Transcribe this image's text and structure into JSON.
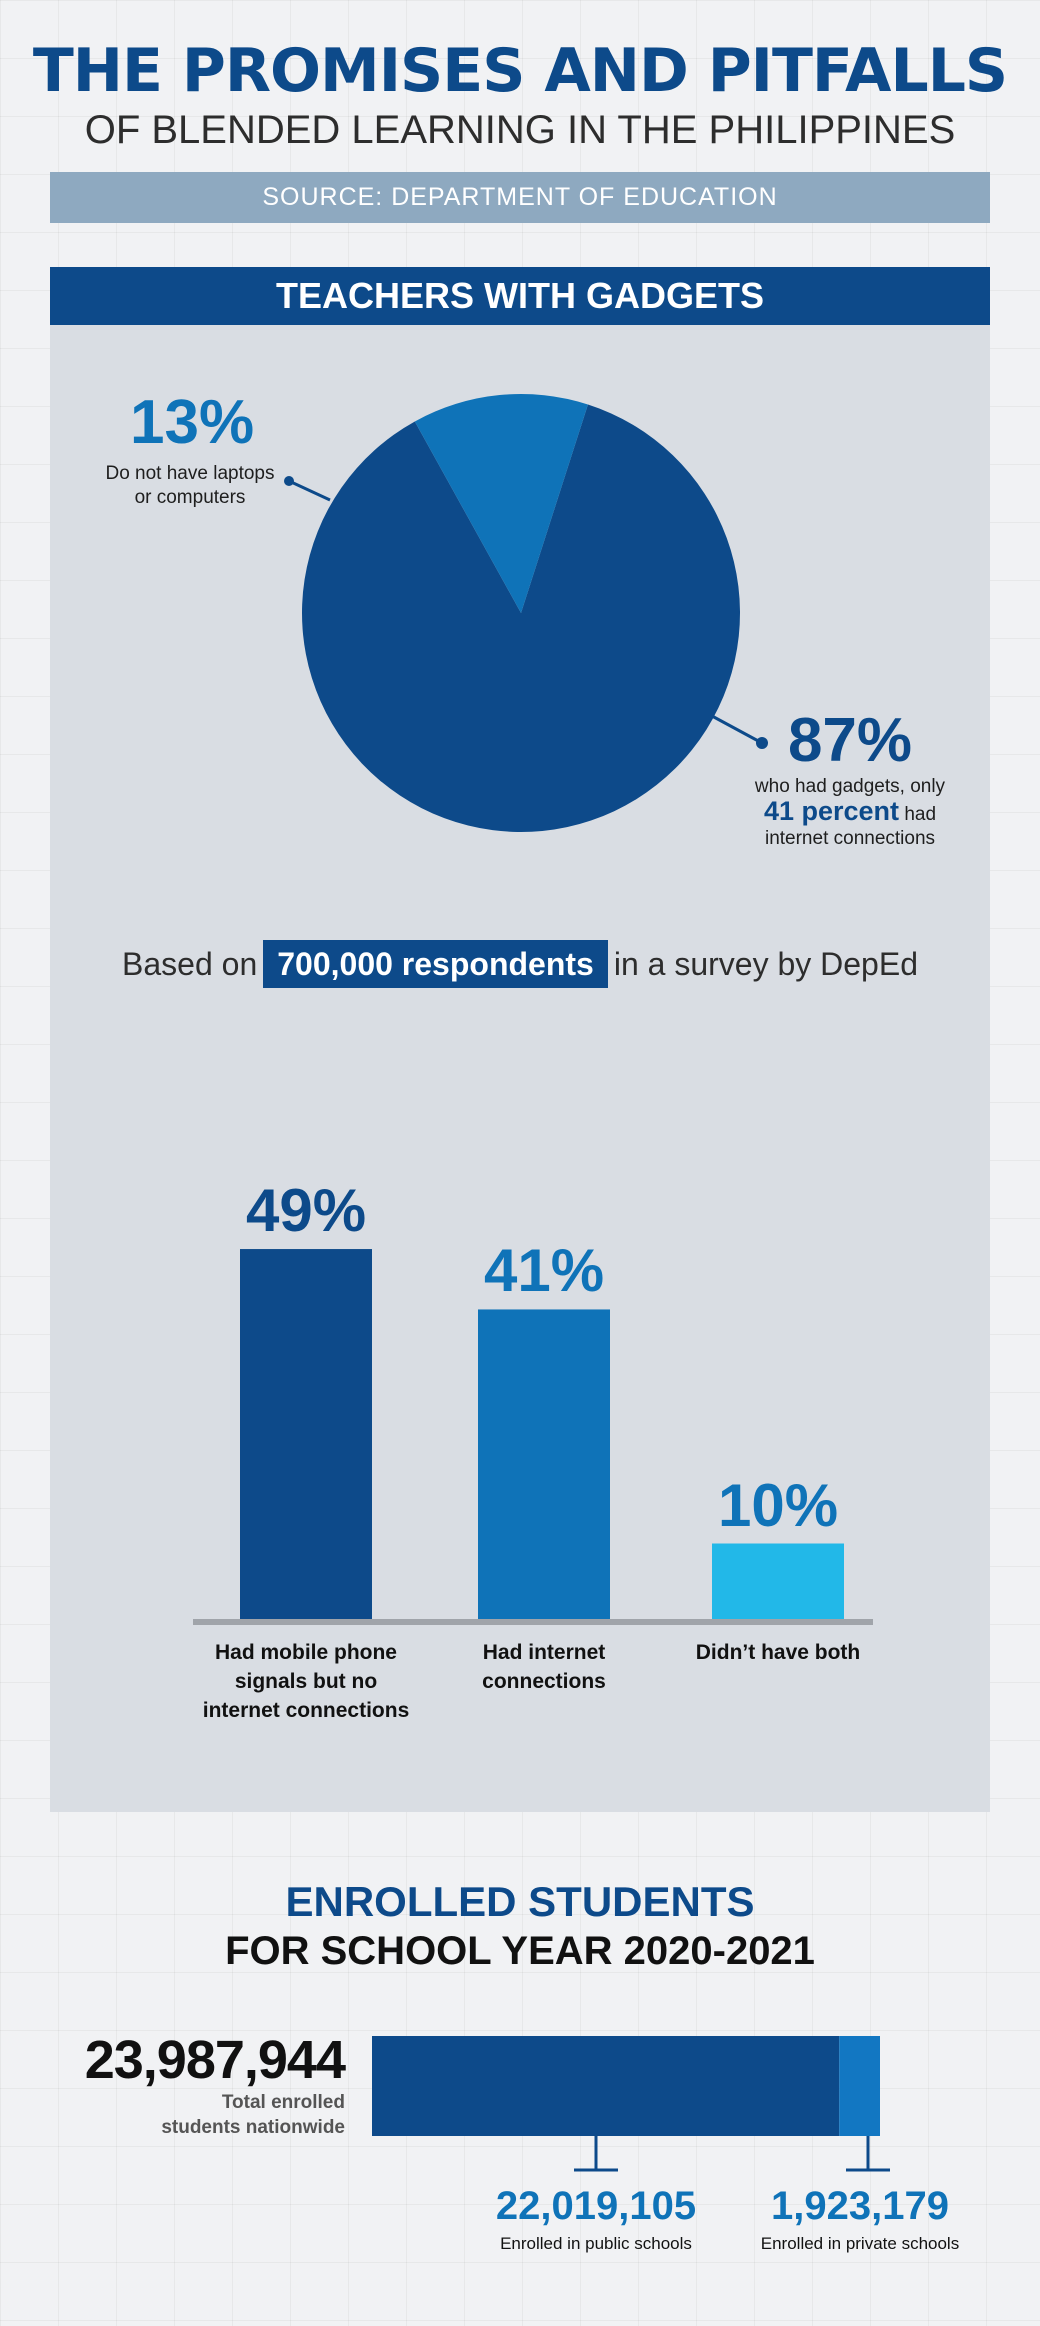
{
  "header": {
    "title": "THE PROMISES AND PITFALLS",
    "subtitle": "OF BLENDED LEARNING IN THE PHILIPPINES",
    "source": "SOURCE: DEPARTMENT OF EDUCATION"
  },
  "gadgets": {
    "heading": "TEACHERS WITH GADGETS",
    "no_pct": "13%",
    "no_label_1": "Do not have laptops",
    "no_label_2": "or computers",
    "yes_pct": "87%",
    "yes_label_1": "who had gadgets, only",
    "yes_label_2_bold": "41 percent",
    "yes_label_2_rest": " had",
    "yes_label_3": "internet connections",
    "respondents_pre": "Based on",
    "respondents_hl": "700,000 respondents",
    "respondents_post": "in a survey by DepEd"
  },
  "colors": {
    "dark_blue": "#0d4a8a",
    "mid_blue": "#0f73b8",
    "light_blue": "#22b8e8"
  },
  "chart_data": [
    {
      "type": "pie",
      "title": "Teachers with gadgets",
      "slices": [
        {
          "label": "Do not have laptops or computers",
          "value": 13
        },
        {
          "label": "Had gadgets",
          "value": 87
        }
      ]
    },
    {
      "type": "bar",
      "categories": [
        "Had mobile phone signals but no internet connections",
        "Had internet connections",
        "Didn't have both"
      ],
      "values": [
        49,
        41,
        10
      ],
      "value_labels": [
        "49%",
        "41%",
        "10%"
      ],
      "label_lines": [
        [
          "Had mobile phone",
          "signals but no",
          "internet connections"
        ],
        [
          "Had internet connections"
        ],
        [
          "Didn’t have both"
        ]
      ],
      "ylim": [
        0,
        100
      ]
    },
    {
      "type": "bar",
      "orientation": "stacked-horizontal",
      "title": "Enrolled students for school year 2020-2021",
      "total": 23987944,
      "segments": [
        {
          "label": "Enrolled in public schools",
          "value": 22019105
        },
        {
          "label": "Enrolled in private schools",
          "value": 1923179
        }
      ]
    }
  ],
  "enrolled": {
    "heading_1": "ENROLLED STUDENTS",
    "heading_2": "FOR SCHOOL YEAR 2020-2021",
    "total": "23,987,944",
    "total_label_1": "Total enrolled",
    "total_label_2": "students nationwide",
    "public": "22,019,105",
    "public_label": "Enrolled in public schools",
    "private": "1,923,179",
    "private_label": "Enrolled in private schools"
  }
}
